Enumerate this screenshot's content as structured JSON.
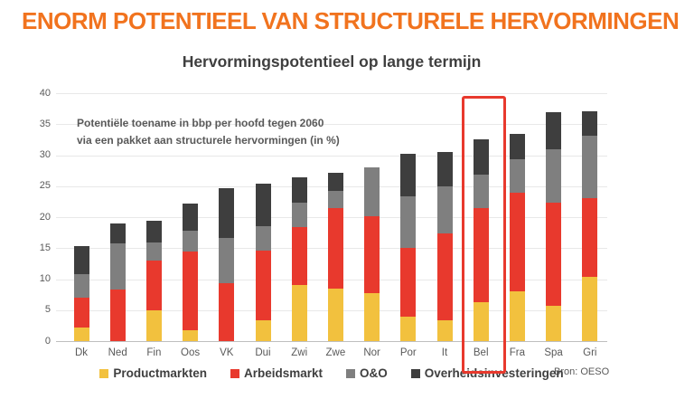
{
  "header": {
    "title": "ENORM POTENTIEEL VAN STRUCTURELE HERVORMINGEN",
    "title_color": "#F1731E"
  },
  "chart_data": {
    "type": "bar",
    "stacked": true,
    "title": "Hervormingspotentieel op lange termijn",
    "annotation_line1": "Potentiële toename in bbp per hoofd tegen 2060",
    "annotation_line2": "via een pakket aan structurele hervormingen (in %)",
    "categories": [
      "Dk",
      "Ned",
      "Fin",
      "Oos",
      "VK",
      "Dui",
      "Zwi",
      "Zwe",
      "Nor",
      "Por",
      "It",
      "Bel",
      "Fra",
      "Spa",
      "Gri"
    ],
    "series": [
      {
        "name": "Productmarkten",
        "color": "#F2C13E",
        "values": [
          2.2,
          0,
          5.0,
          1.7,
          0,
          3.3,
          9.0,
          8.5,
          7.8,
          4.0,
          3.3,
          6.3,
          8.0,
          5.7,
          10.3
        ]
      },
      {
        "name": "Arbeidsmarkt",
        "color": "#E8392D",
        "values": [
          4.8,
          8.3,
          8.0,
          12.8,
          9.4,
          11.3,
          9.4,
          12.9,
          12.4,
          11.0,
          14.1,
          15.2,
          16.0,
          16.7,
          12.7
        ]
      },
      {
        "name": "O&O",
        "color": "#7F7F7F",
        "values": [
          3.8,
          7.4,
          2.9,
          3.3,
          7.3,
          3.9,
          4.0,
          2.8,
          7.8,
          8.3,
          7.6,
          5.4,
          5.3,
          8.6,
          10.1
        ]
      },
      {
        "name": "Overheidsinvesteringen",
        "color": "#3E3E3E",
        "values": [
          4.5,
          3.3,
          3.5,
          4.4,
          8.0,
          6.9,
          4.0,
          2.9,
          0,
          6.9,
          5.5,
          5.7,
          4.1,
          5.9,
          4.0
        ]
      }
    ],
    "totals": [
      15.3,
      19.0,
      19.4,
      22.2,
      24.7,
      25.4,
      26.4,
      27.1,
      28.0,
      30.2,
      30.5,
      32.6,
      33.4,
      36.9,
      37.1
    ],
    "ylabel": "",
    "xlabel": "",
    "ylim": [
      0,
      40
    ],
    "ytick_step": 5,
    "grid": true,
    "legend_position": "bottom",
    "highlight": {
      "category": "Bel",
      "color": "#E8392D"
    },
    "source": "Bron: OESO"
  }
}
